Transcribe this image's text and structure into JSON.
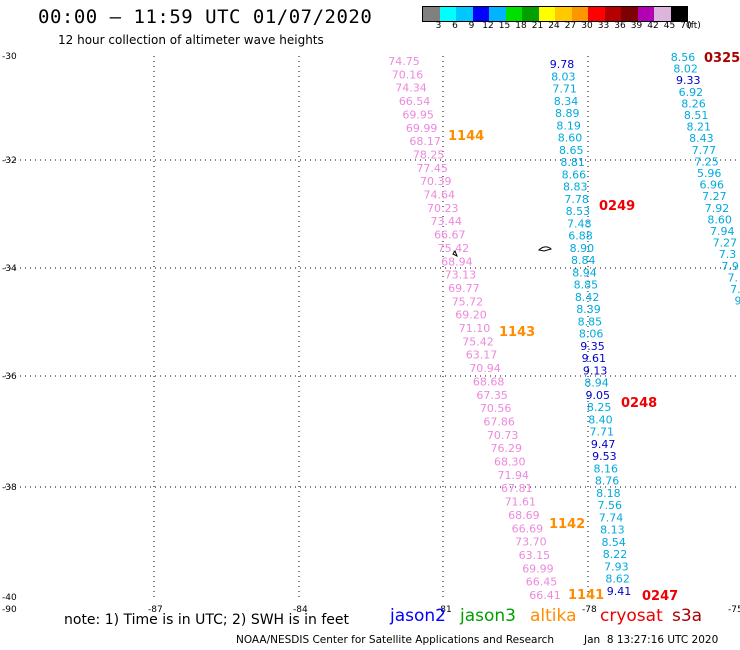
{
  "header": {
    "title": "00:00 – 11:59 UTC 01/07/2020",
    "subtitle": "12 hour collection of altimeter wave heights"
  },
  "legend": {
    "colors": [
      "#808080",
      "#00ffff",
      "#00c8ff",
      "#0000ff",
      "#00b4ff",
      "#00e000",
      "#00a000",
      "#ffff00",
      "#ffc800",
      "#ff9600",
      "#ff0000",
      "#b40000",
      "#7f0000",
      "#b400b4",
      "#dcb4dc",
      "#000000"
    ],
    "ticks": [
      "3",
      "6",
      "9",
      "12",
      "15",
      "18",
      "21",
      "24",
      "27",
      "30",
      "33",
      "36",
      "39",
      "42",
      "45",
      "70",
      "(ft)"
    ]
  },
  "axes": {
    "lat_labels": [
      "-30",
      "-32",
      "-34",
      "-36",
      "-38",
      "-40"
    ],
    "lon_labels": [
      "-90",
      "-87",
      "-84",
      "-81",
      "-78",
      "-75"
    ]
  },
  "tracks": {
    "altika": {
      "color": "#ee88dd",
      "values": [
        "74.75",
        "70.16",
        "74.34",
        "66.54",
        "69.95",
        "69.99",
        "68.17",
        "78.25",
        "77.45",
        "70.39",
        "74.64",
        "70.23",
        "73.44",
        "66.67",
        "75.42",
        "68.94",
        "73.13",
        "69.77",
        "75.72",
        "69.20",
        "71.10",
        "75.42",
        "63.17",
        "70.94",
        "68.68",
        "67.35",
        "70.56",
        "67.86",
        "70.73",
        "76.29",
        "68.30",
        "71.94",
        "67.81",
        "71.61",
        "68.69",
        "66.69",
        "73.70",
        "63.15",
        "69.99",
        "66.45",
        "66.41"
      ],
      "times": [
        "1144",
        "1143",
        "1142",
        "1141"
      ],
      "time_color": "#ff8c00"
    },
    "track_a": {
      "values": [
        "9.78",
        "8.03",
        "7.71",
        "8.34",
        "8.89",
        "8.19",
        "8.60",
        "8.65",
        "8.81",
        "8.66",
        "8.83",
        "7.78",
        "8.53",
        "7.48",
        "6.88",
        "8.90",
        "8.84",
        "8.94",
        "8.85",
        "8.42",
        "8.39",
        "8.85",
        "8.06",
        "9.35",
        "9.61",
        "9.13",
        "8.94",
        "9.05",
        "8.25",
        "8.40",
        "7.71",
        "9.47",
        "9.53",
        "8.16",
        "8.76",
        "8.18",
        "7.56",
        "7.74",
        "8.13",
        "8.54",
        "8.22",
        "7.93",
        "8.62",
        "9.41"
      ],
      "colors": [
        "#0000cc",
        "#00aadd",
        "#00aadd",
        "#00aadd",
        "#00aadd",
        "#00aadd",
        "#00aadd",
        "#00aadd",
        "#00aadd",
        "#00aadd",
        "#00aadd",
        "#00aadd",
        "#00aadd",
        "#00aadd",
        "#00aadd",
        "#00aadd",
        "#00aadd",
        "#00aadd",
        "#00aadd",
        "#00aadd",
        "#00aadd",
        "#00aadd",
        "#00aadd",
        "#0000cc",
        "#0000cc",
        "#0000cc",
        "#00aadd",
        "#0000cc",
        "#00aadd",
        "#00aadd",
        "#00aadd",
        "#0000cc",
        "#0000cc",
        "#00aadd",
        "#00aadd",
        "#00aadd",
        "#00aadd",
        "#00aadd",
        "#00aadd",
        "#00aadd",
        "#00aadd",
        "#00aadd",
        "#00aadd",
        "#0000cc"
      ],
      "times": [
        "0249",
        "0248",
        "0247"
      ],
      "time_color": "#ee0000"
    },
    "track_b": {
      "values": [
        "8.56",
        "8.02",
        "9.33",
        "6.92",
        "8.26",
        "8.51",
        "8.21",
        "8.43",
        "7.77",
        "7.25",
        "5.96",
        "6.96",
        "7.27",
        "7.92",
        "8.60",
        "7.94",
        "7.27",
        "7.3",
        "7.9",
        "7.",
        "7.",
        "9"
      ],
      "colors": [
        "#00aadd",
        "#00aadd",
        "#0000cc",
        "#00aadd",
        "#00aadd",
        "#00aadd",
        "#00aadd",
        "#00aadd",
        "#00aadd",
        "#00aadd",
        "#00aadd",
        "#00aadd",
        "#00aadd",
        "#00aadd",
        "#00aadd",
        "#00aadd",
        "#00aadd",
        "#00aadd",
        "#00aadd",
        "#00aadd",
        "#00aadd",
        "#00aadd"
      ],
      "times": [
        "0325"
      ],
      "time_color": "#aa0000"
    }
  },
  "footer": {
    "note": "note: 1) Time is in UTC; 2) SWH is in feet",
    "satellites": [
      {
        "name": "jason2",
        "color": "#0000ff"
      },
      {
        "name": "jason3",
        "color": "#00a000"
      },
      {
        "name": "altika",
        "color": "#ff8c00"
      },
      {
        "name": "cryosat",
        "color": "#ee0000"
      },
      {
        "name": "s3a",
        "color": "#aa0000"
      }
    ],
    "credit": "NOAA/NESDIS Center for Satellite Applications and Research",
    "timestamp": "Jan  8 13:27:16 UTC 2020"
  }
}
